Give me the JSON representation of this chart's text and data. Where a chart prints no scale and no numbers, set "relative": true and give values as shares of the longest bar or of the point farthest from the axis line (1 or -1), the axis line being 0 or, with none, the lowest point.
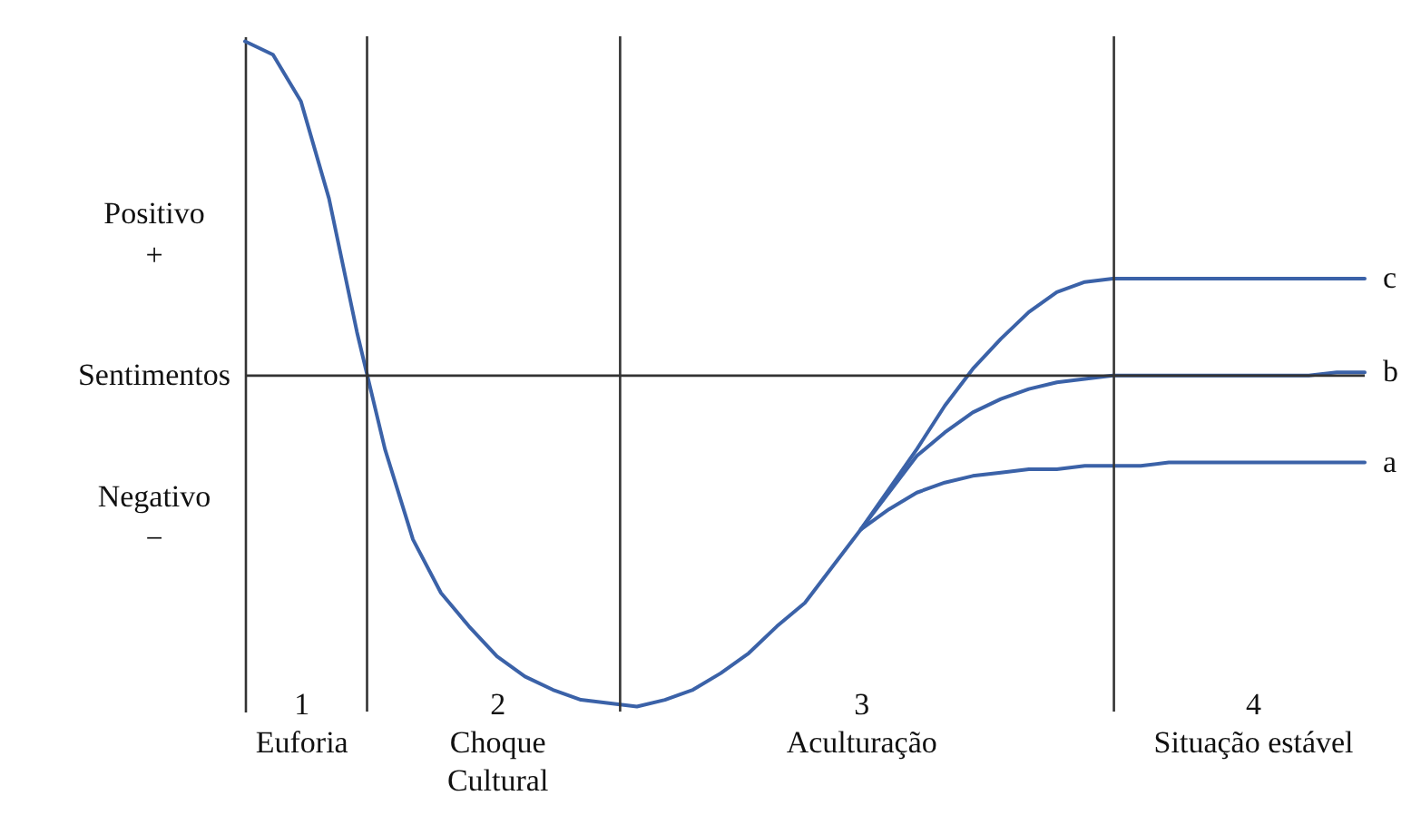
{
  "chart_data": {
    "type": "line",
    "relative": true,
    "categories": [
      null,
      null,
      "1\nEuforia",
      null,
      null,
      null,
      null,
      null,
      null,
      "2\nChoque\nCultural",
      null,
      null,
      null,
      null,
      null,
      null,
      null,
      null,
      null,
      null,
      null,
      null,
      "3\nAculturação",
      null,
      null,
      null,
      null,
      null,
      null,
      null,
      null,
      null,
      null,
      null,
      null,
      null,
      "4\nSituação estável",
      null,
      null,
      null,
      null
    ],
    "series": [
      {
        "name": "a",
        "color": "#3b62a8",
        "values": [
          null,
          null,
          null,
          null,
          null,
          null,
          null,
          null,
          null,
          null,
          null,
          null,
          null,
          null,
          null,
          null,
          null,
          null,
          null,
          null,
          null,
          null,
          -0.46,
          -0.4,
          -0.35,
          -0.32,
          -0.3,
          -0.29,
          -0.28,
          -0.28,
          -0.27,
          -0.27,
          -0.27,
          -0.26,
          -0.26,
          -0.26,
          -0.26,
          -0.26,
          -0.26,
          -0.26,
          -0.26
        ]
      },
      {
        "name": "b",
        "color": "#3b62a8",
        "values": [
          null,
          null,
          null,
          null,
          null,
          null,
          null,
          null,
          null,
          null,
          null,
          null,
          null,
          null,
          null,
          null,
          null,
          null,
          null,
          null,
          null,
          null,
          -0.46,
          -0.35,
          -0.24,
          -0.17,
          -0.11,
          -0.07,
          -0.04,
          -0.02,
          -0.01,
          0,
          0,
          0,
          0,
          0,
          0,
          0,
          0,
          0.01,
          0.01
        ]
      },
      {
        "name": "c",
        "color": "#3b62a8",
        "values": [
          1.0,
          0.96,
          0.82,
          0.53,
          0.13,
          -0.22,
          -0.49,
          -0.65,
          -0.75,
          -0.84,
          -0.9,
          -0.94,
          -0.97,
          -0.98,
          -0.99,
          -0.97,
          -0.94,
          -0.89,
          -0.83,
          -0.75,
          -0.68,
          -0.57,
          -0.46,
          -0.34,
          -0.22,
          -0.09,
          0.02,
          0.11,
          0.19,
          0.25,
          0.28,
          0.29,
          0.29,
          0.29,
          0.29,
          0.29,
          0.29,
          0.29,
          0.29,
          0.29,
          0.29
        ]
      }
    ],
    "ref_lines": [
      {
        "axis": "y",
        "value": 0
      }
    ],
    "annotations": [
      "Positivo\n+",
      "Sentimentos",
      "Negativo\n−"
    ]
  }
}
